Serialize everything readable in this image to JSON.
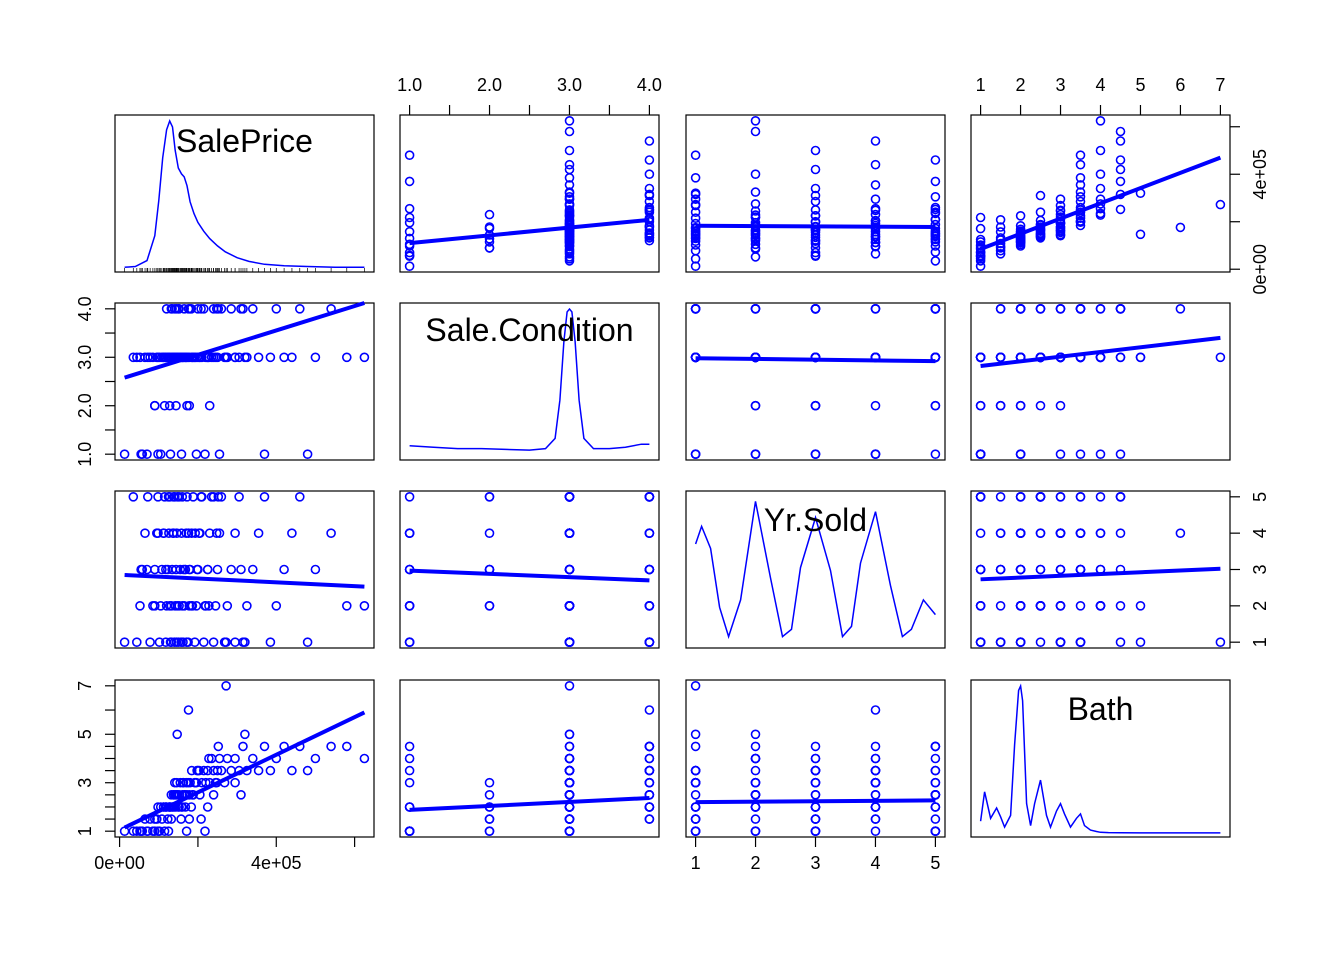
{
  "chart_data": {
    "type": "scatter",
    "subtype": "scatterplot-matrix",
    "variables": [
      "SalePrice",
      "Sale.Condition",
      "Yr.Sold",
      "Bath"
    ],
    "diagonal": "kernel-density",
    "point_color": "#0000ff",
    "line_color": "#0000ff",
    "ranges": {
      "SalePrice": [
        12789,
        625000
      ],
      "Sale.Condition": [
        1,
        4
      ],
      "Yr.Sold": [
        1,
        5
      ],
      "Bath": [
        1,
        7
      ]
    },
    "ticks": {
      "SalePrice": [
        0,
        200000,
        400000,
        600000
      ],
      "Sale.Condition": [
        1,
        2,
        3,
        4
      ],
      "Yr.Sold": [
        1,
        2,
        3,
        4,
        5
      ],
      "Bath": [
        1,
        2,
        3,
        4,
        5,
        6,
        7
      ]
    },
    "tick_labels": {
      "SalePrice": [
        "0e+00",
        "",
        "4e+05",
        ""
      ],
      "Sale.Condition": [
        "1.0",
        "2.0",
        "3.0",
        "4.0"
      ],
      "Yr.Sold": [
        "1",
        "2",
        "3",
        "4",
        "5"
      ],
      "Bath_top": [
        "1",
        "2",
        "3",
        "4",
        "5",
        "6",
        "7"
      ],
      "Bath_left": [
        "1",
        "",
        "3",
        "",
        "5",
        "",
        "7"
      ],
      "Yr.Sold_right": [
        "1",
        "2",
        "3",
        "4",
        "5"
      ],
      "Sale.Condition_left": [
        "1.0",
        "2.0",
        "3.0",
        "4.0"
      ]
    },
    "fits": [
      {
        "y": "SalePrice",
        "x": "Sale.Condition",
        "start": 110000,
        "end": 208000
      },
      {
        "y": "SalePrice",
        "x": "Yr.Sold",
        "start": 183000,
        "end": 178000
      },
      {
        "y": "SalePrice",
        "x": "Bath",
        "start": 85000,
        "end": 470000
      },
      {
        "y": "Sale.Condition",
        "x": "SalePrice",
        "start": 2.58,
        "end": 4.12
      },
      {
        "y": "Sale.Condition",
        "x": "Yr.Sold",
        "start": 2.98,
        "end": 2.92
      },
      {
        "y": "Sale.Condition",
        "x": "Bath",
        "start": 2.82,
        "end": 3.4
      },
      {
        "y": "Yr.Sold",
        "x": "SalePrice",
        "start": 2.85,
        "end": 2.53
      },
      {
        "y": "Yr.Sold",
        "x": "Sale.Condition",
        "start": 2.97,
        "end": 2.7
      },
      {
        "y": "Yr.Sold",
        "x": "Bath",
        "start": 2.73,
        "end": 3.02
      },
      {
        "y": "Bath",
        "x": "SalePrice",
        "start": 1.15,
        "end": 5.9
      },
      {
        "y": "Bath",
        "x": "Sale.Condition",
        "start": 1.88,
        "end": 2.37
      },
      {
        "y": "Bath",
        "x": "Yr.Sold",
        "start": 2.2,
        "end": 2.27
      }
    ],
    "densities": {
      "SalePrice": {
        "x": [
          12789,
          40000,
          70000,
          90000,
          100000,
          110000,
          120000,
          128000,
          135000,
          142000,
          150000,
          158000,
          165000,
          172000,
          180000,
          190000,
          200000,
          215000,
          230000,
          250000,
          270000,
          300000,
          330000,
          370000,
          420000,
          480000,
          550000,
          625000
        ],
        "y": [
          0.005,
          0.01,
          0.05,
          0.22,
          0.46,
          0.75,
          0.94,
          1.0,
          0.96,
          0.8,
          0.68,
          0.64,
          0.62,
          0.56,
          0.45,
          0.37,
          0.31,
          0.25,
          0.2,
          0.15,
          0.11,
          0.07,
          0.045,
          0.025,
          0.015,
          0.01,
          0.005,
          0.005
        ]
      },
      "Sale.Condition": {
        "x": [
          1.0,
          1.3,
          1.6,
          1.9,
          2.2,
          2.5,
          2.7,
          2.82,
          2.88,
          2.93,
          2.97,
          3.0,
          3.03,
          3.07,
          3.12,
          3.18,
          3.3,
          3.5,
          3.7,
          3.9,
          4.0
        ],
        "y": [
          0.07,
          0.06,
          0.05,
          0.05,
          0.045,
          0.04,
          0.05,
          0.12,
          0.38,
          0.78,
          0.98,
          1.0,
          0.98,
          0.78,
          0.38,
          0.12,
          0.05,
          0.05,
          0.06,
          0.08,
          0.08
        ]
      },
      "Yr.Sold": {
        "x": [
          1.0,
          1.1,
          1.25,
          1.4,
          1.55,
          1.75,
          2.0,
          2.25,
          2.45,
          2.6,
          2.75,
          3.0,
          3.25,
          3.45,
          3.6,
          3.75,
          4.0,
          4.25,
          4.45,
          4.6,
          4.8,
          5.0
        ],
        "y": [
          0.68,
          0.8,
          0.65,
          0.25,
          0.05,
          0.3,
          0.97,
          0.45,
          0.05,
          0.1,
          0.52,
          0.86,
          0.5,
          0.05,
          0.12,
          0.55,
          0.9,
          0.4,
          0.05,
          0.1,
          0.3,
          0.2
        ]
      },
      "Bath": {
        "x": [
          1.0,
          1.1,
          1.25,
          1.4,
          1.5,
          1.6,
          1.75,
          1.85,
          1.95,
          2.0,
          2.05,
          2.15,
          2.25,
          2.35,
          2.5,
          2.65,
          2.75,
          2.9,
          3.0,
          3.1,
          3.25,
          3.4,
          3.5,
          3.6,
          3.75,
          3.9,
          4.0,
          4.2,
          4.5,
          5.0,
          6.0,
          7.0
        ],
        "y": [
          0.08,
          0.28,
          0.1,
          0.17,
          0.11,
          0.04,
          0.12,
          0.6,
          0.97,
          1.0,
          0.9,
          0.2,
          0.05,
          0.2,
          0.36,
          0.12,
          0.04,
          0.15,
          0.2,
          0.13,
          0.04,
          0.1,
          0.13,
          0.05,
          0.02,
          0.01,
          0.005,
          0.003,
          0.002,
          0.001,
          0.001,
          0.001
        ]
      }
    },
    "points": {
      "SalePrice": [
        44000,
        52000,
        58000,
        65000,
        72000,
        78000,
        85000,
        90000,
        95000,
        98000,
        102000,
        105000,
        108000,
        112000,
        115000,
        118000,
        120000,
        123000,
        126000,
        128000,
        130000,
        132000,
        134000,
        136000,
        138000,
        140000,
        142000,
        144000,
        146000,
        148000,
        150000,
        152000,
        155000,
        158000,
        160000,
        162000,
        165000,
        168000,
        170000,
        172000,
        175000,
        178000,
        180000,
        184000,
        188000,
        192000,
        196000,
        200000,
        205000,
        210000,
        215000,
        220000,
        225000,
        230000,
        235000,
        240000,
        245000,
        250000,
        255000,
        260000,
        268000,
        275000,
        285000,
        295000,
        305000,
        315000,
        325000,
        340000,
        355000,
        370000,
        385000,
        400000,
        420000,
        440000,
        460000,
        480000,
        500000,
        540000,
        580000,
        625000,
        118000,
        132000,
        138000,
        147000,
        152000,
        163000,
        171000,
        176000,
        186000,
        198000,
        208000,
        228000,
        248000,
        272000,
        310000,
        98000,
        128000,
        141000,
        157000,
        167000,
        183000,
        203000,
        225000,
        252000,
        295000,
        70000,
        90000,
        113000,
        125000,
        145000,
        160000,
        178000,
        193000,
        218000,
        240000,
        320000,
        12789,
        35000,
        55000
      ],
      "Sale.Condition": [
        3,
        3,
        1,
        3,
        3,
        3,
        3,
        2,
        3,
        3,
        3,
        1,
        3,
        3,
        2,
        3,
        4,
        3,
        3,
        3,
        1,
        3,
        4,
        3,
        3,
        3,
        3,
        2,
        3,
        3,
        4,
        3,
        3,
        1,
        3,
        3,
        4,
        3,
        3,
        2,
        3,
        3,
        4,
        3,
        3,
        3,
        1,
        4,
        3,
        3,
        4,
        3,
        3,
        2,
        3,
        4,
        3,
        3,
        1,
        4,
        3,
        3,
        4,
        3,
        3,
        4,
        3,
        4,
        3,
        1,
        3,
        4,
        3,
        3,
        4,
        1,
        3,
        4,
        3,
        3,
        3,
        4,
        3,
        3,
        4,
        3,
        3,
        4,
        3,
        3,
        4,
        3,
        4,
        3,
        4,
        1,
        2,
        4,
        3,
        3,
        4,
        3,
        3,
        4,
        3,
        1,
        2,
        3,
        3,
        4,
        3,
        2,
        3,
        1,
        3,
        3,
        1,
        3,
        1
      ],
      "Yr.Sold": [
        1,
        2,
        3,
        4,
        5,
        1,
        2,
        3,
        4,
        5,
        1,
        2,
        3,
        4,
        5,
        1,
        2,
        3,
        4,
        5,
        1,
        2,
        3,
        4,
        5,
        1,
        2,
        3,
        4,
        5,
        1,
        2,
        3,
        4,
        5,
        1,
        2,
        3,
        4,
        5,
        1,
        2,
        3,
        4,
        5,
        1,
        2,
        3,
        4,
        5,
        1,
        2,
        3,
        4,
        5,
        1,
        2,
        3,
        4,
        5,
        1,
        2,
        3,
        4,
        5,
        1,
        2,
        3,
        4,
        5,
        1,
        2,
        3,
        4,
        5,
        1,
        3,
        4,
        2,
        2,
        3,
        1,
        4,
        2,
        5,
        3,
        1,
        4,
        2,
        3,
        5,
        2,
        4,
        1,
        3,
        4,
        2,
        5,
        1,
        3,
        2,
        4,
        3,
        5,
        1,
        3,
        2,
        4,
        5,
        1,
        2,
        3,
        4,
        2,
        5,
        1,
        1,
        5,
        3
      ],
      "Bath": [
        1,
        1,
        1,
        1.5,
        1,
        1.5,
        1,
        1,
        1.5,
        2,
        1,
        2,
        1.5,
        2,
        1,
        2,
        2,
        1.5,
        2,
        2,
        2,
        2.5,
        2,
        2,
        2.5,
        2,
        2.5,
        2,
        3,
        2.5,
        2,
        2.5,
        3,
        2,
        2.5,
        3,
        2.5,
        2,
        3,
        2.5,
        3,
        2.5,
        3,
        3.5,
        2.5,
        3,
        3,
        3.5,
        2.5,
        3,
        3.5,
        3,
        3.5,
        3,
        4,
        3.5,
        3,
        3.5,
        4,
        3.5,
        3,
        4,
        3.5,
        4,
        3.5,
        4.5,
        3.5,
        4,
        3.5,
        4.5,
        3.5,
        4,
        4.5,
        3.5,
        4.5,
        3.5,
        4,
        4.5,
        4.5,
        4,
        2,
        1.5,
        2.5,
        5,
        2,
        3,
        1,
        6,
        2.5,
        3.5,
        1.5,
        4,
        3,
        7,
        2.5,
        1,
        2,
        3,
        1.5,
        2.5,
        2,
        3.5,
        2,
        4.5,
        3,
        1,
        1.5,
        2,
        1,
        2.5,
        2,
        1.5,
        3,
        1,
        2.5,
        5,
        1,
        1,
        1
      ]
    }
  }
}
